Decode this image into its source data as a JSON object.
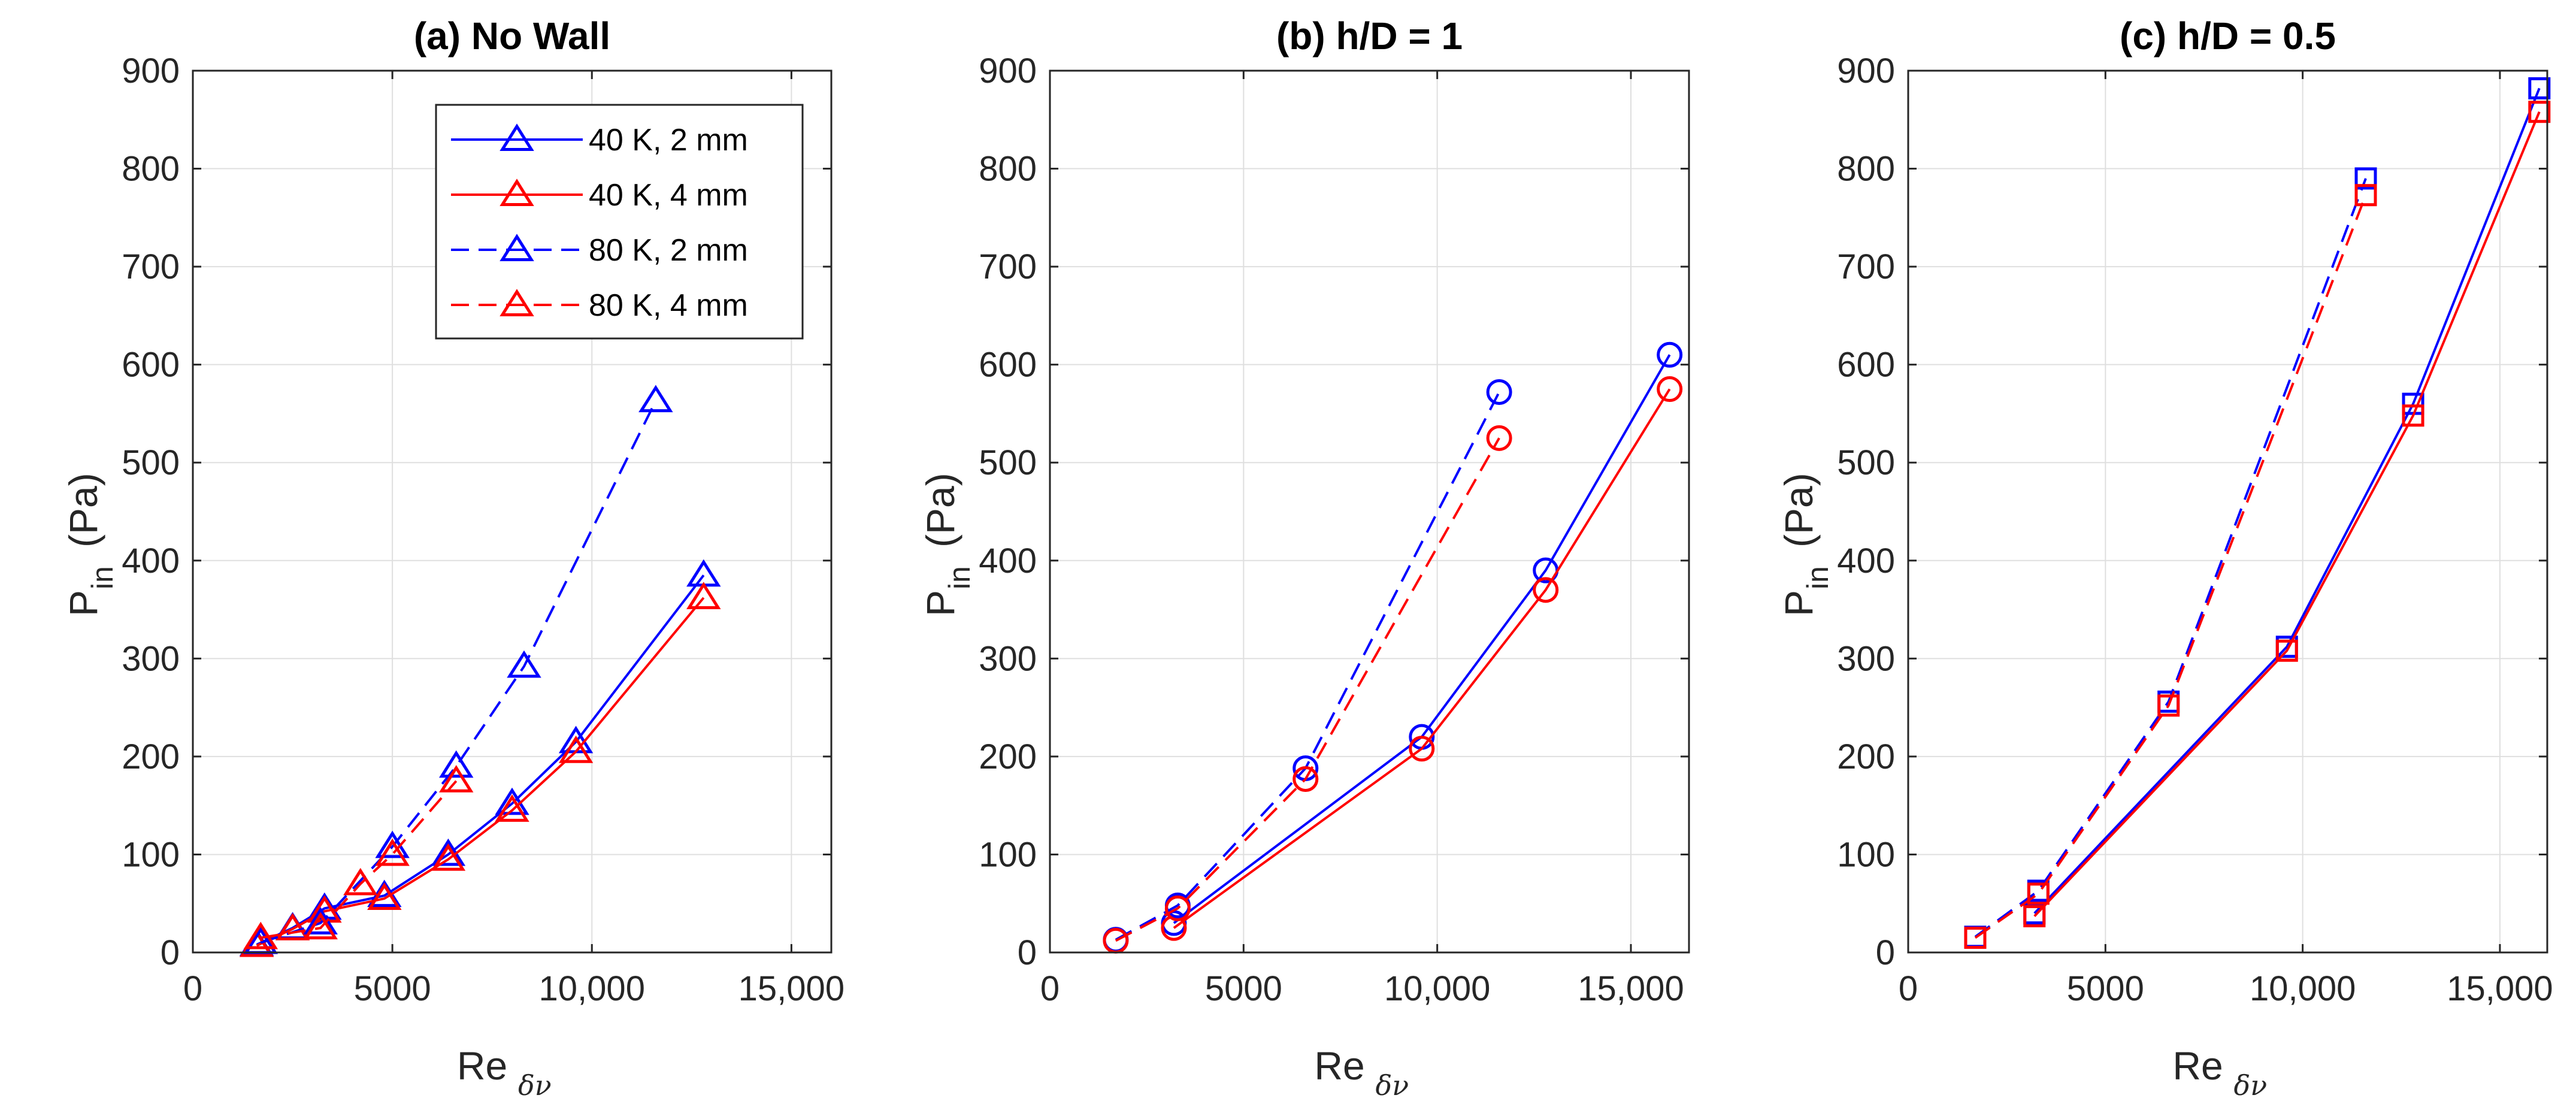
{
  "figure": {
    "colors": {
      "blue": "#0000ff",
      "red": "#ff0000",
      "axis": "#262626",
      "grid": "#dfdfdf"
    }
  },
  "chart_data": [
    {
      "type": "line",
      "title": "(a) No Wall",
      "xlabel": "Re",
      "xlabel_sub": "δν",
      "ylabel": "P",
      "ylabel_sub": "in",
      "ylabel_unit": "(Pa)",
      "xlim": [
        0,
        16000
      ],
      "ylim": [
        0,
        900
      ],
      "xticks": [
        0,
        5000,
        10000,
        15000
      ],
      "xtick_labels": [
        "0",
        "5000",
        "10,000",
        "15,000"
      ],
      "yticks": [
        0,
        100,
        200,
        300,
        400,
        500,
        600,
        700,
        800,
        900
      ],
      "ytick_labels": [
        "0",
        "100",
        "200",
        "300",
        "400",
        "500",
        "600",
        "700",
        "800",
        "900"
      ],
      "grid": true,
      "marker": "triangle",
      "legend": {
        "position": "top-right",
        "entries": [
          "40 K, 2 mm",
          "40 K, 4 mm",
          "80 K, 2 mm",
          "80 K, 4 mm"
        ]
      },
      "series": [
        {
          "name": "40 K, 2 mm",
          "color": "blue",
          "dash": false,
          "x": [
            1600,
            2500,
            3300,
            4800,
            6400,
            8000,
            9600,
            12800
          ],
          "y": [
            8,
            25,
            45,
            58,
            100,
            152,
            215,
            385
          ]
        },
        {
          "name": "40 K, 4 mm",
          "color": "red",
          "dash": false,
          "x": [
            1600,
            2500,
            3300,
            4800,
            6400,
            8000,
            9600,
            12800
          ],
          "y": [
            7,
            24,
            42,
            55,
            95,
            145,
            205,
            362
          ]
        },
        {
          "name": "80 K, 2 mm",
          "color": "blue",
          "dash": true,
          "x": [
            1700,
            3200,
            5000,
            6600,
            8300,
            11600
          ],
          "y": [
            10,
            30,
            108,
            190,
            292,
            563
          ]
        },
        {
          "name": "80 K, 4 mm",
          "color": "red",
          "dash": true,
          "x": [
            1700,
            3200,
            4200,
            5000,
            6600
          ],
          "y": [
            15,
            25,
            70,
            100,
            175
          ]
        }
      ]
    },
    {
      "type": "line",
      "title": "(b) h/D = 1",
      "xlabel": "Re",
      "xlabel_sub": "δν",
      "ylabel": "P",
      "ylabel_sub": "in",
      "ylabel_unit": "(Pa)",
      "xlim": [
        0,
        16500
      ],
      "ylim": [
        0,
        900
      ],
      "xticks": [
        0,
        5000,
        10000,
        15000
      ],
      "xtick_labels": [
        "0",
        "5000",
        "10,000",
        "15,000"
      ],
      "yticks": [
        0,
        100,
        200,
        300,
        400,
        500,
        600,
        700,
        800,
        900
      ],
      "ytick_labels": [
        "0",
        "100",
        "200",
        "300",
        "400",
        "500",
        "600",
        "700",
        "800",
        "900"
      ],
      "grid": true,
      "marker": "circle",
      "series": [
        {
          "name": "40 K, 2 mm",
          "color": "blue",
          "dash": false,
          "x": [
            3200,
            9600,
            12800,
            16000
          ],
          "y": [
            30,
            220,
            390,
            610
          ]
        },
        {
          "name": "40 K, 4 mm",
          "color": "red",
          "dash": false,
          "x": [
            3200,
            9600,
            12800,
            16000
          ],
          "y": [
            25,
            208,
            370,
            575
          ]
        },
        {
          "name": "80 K, 2 mm",
          "color": "blue",
          "dash": true,
          "x": [
            1700,
            3300,
            6600,
            11600
          ],
          "y": [
            13,
            48,
            188,
            572
          ]
        },
        {
          "name": "80 K, 4 mm",
          "color": "red",
          "dash": true,
          "x": [
            1700,
            3300,
            6600,
            11600
          ],
          "y": [
            12,
            45,
            177,
            525
          ]
        }
      ]
    },
    {
      "type": "line",
      "title": "(c) h/D = 0.5",
      "xlabel": "Re",
      "xlabel_sub": "δν",
      "ylabel": "P",
      "ylabel_sub": "in",
      "ylabel_unit": "(Pa)",
      "xlim": [
        0,
        16200
      ],
      "ylim": [
        0,
        900
      ],
      "xticks": [
        0,
        5000,
        10000,
        15000
      ],
      "xtick_labels": [
        "0",
        "5000",
        "10,000",
        "15,000"
      ],
      "yticks": [
        0,
        100,
        200,
        300,
        400,
        500,
        600,
        700,
        800,
        900
      ],
      "ytick_labels": [
        "0",
        "100",
        "200",
        "300",
        "400",
        "500",
        "600",
        "700",
        "800",
        "900"
      ],
      "grid": true,
      "marker": "square",
      "series": [
        {
          "name": "40 K, 2 mm",
          "color": "blue",
          "dash": false,
          "x": [
            3200,
            9600,
            12800,
            16000
          ],
          "y": [
            40,
            312,
            560,
            882
          ]
        },
        {
          "name": "40 K, 4 mm",
          "color": "red",
          "dash": false,
          "x": [
            3200,
            9600,
            12800,
            16000
          ],
          "y": [
            37,
            308,
            548,
            858
          ]
        },
        {
          "name": "80 K, 2 mm",
          "color": "blue",
          "dash": true,
          "x": [
            1700,
            3300,
            6600,
            11600
          ],
          "y": [
            16,
            63,
            256,
            790
          ]
        },
        {
          "name": "80 K, 4 mm",
          "color": "red",
          "dash": true,
          "x": [
            1700,
            3300,
            6600,
            11600
          ],
          "y": [
            15,
            60,
            252,
            773
          ]
        }
      ]
    }
  ]
}
